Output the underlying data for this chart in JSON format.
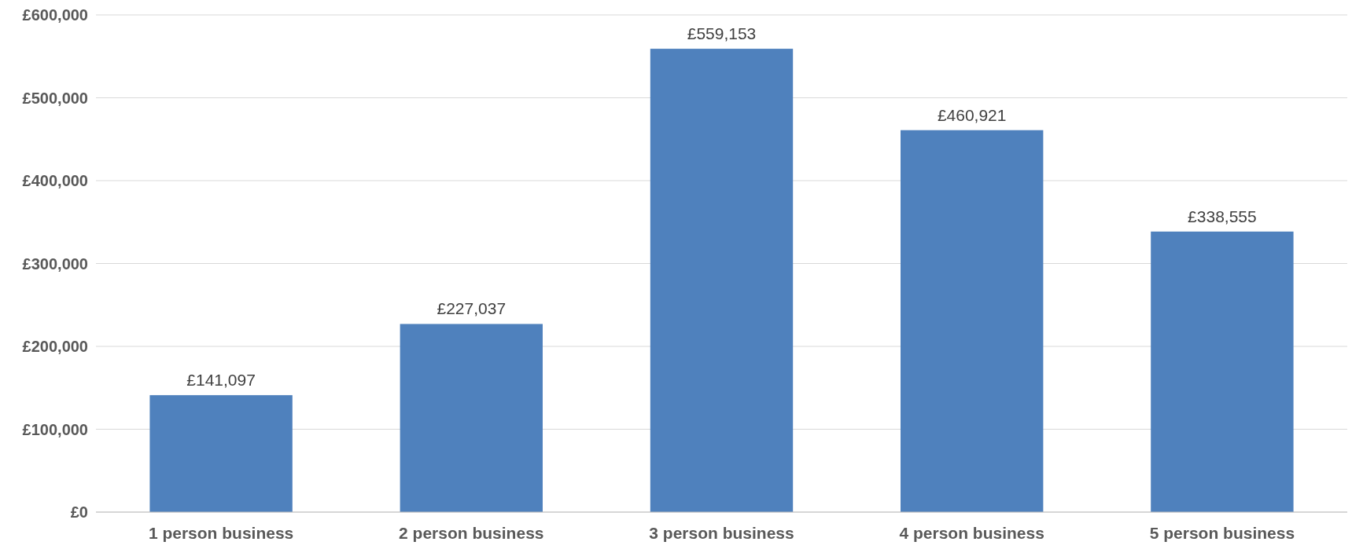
{
  "chart_data": {
    "type": "bar",
    "categories": [
      "1 person business",
      "2 person business",
      "3 person business",
      "4 person business",
      "5 person business"
    ],
    "values": [
      141097,
      227037,
      559153,
      460921,
      338555
    ],
    "value_labels": [
      "£141,097",
      "£227,037",
      "£559,153",
      "£460,921",
      "£338,555"
    ],
    "color": "#4f81bd",
    "ylim": [
      0,
      600000
    ],
    "yticks": [
      {
        "value": 0,
        "label": "£0"
      },
      {
        "value": 100000,
        "label": "£100,000"
      },
      {
        "value": 200000,
        "label": "£200,000"
      },
      {
        "value": 300000,
        "label": "£300,000"
      },
      {
        "value": 400000,
        "label": "£400,000"
      },
      {
        "value": 500000,
        "label": "£500,000"
      },
      {
        "value": 600000,
        "label": "£600,000"
      }
    ],
    "grid": "y"
  }
}
